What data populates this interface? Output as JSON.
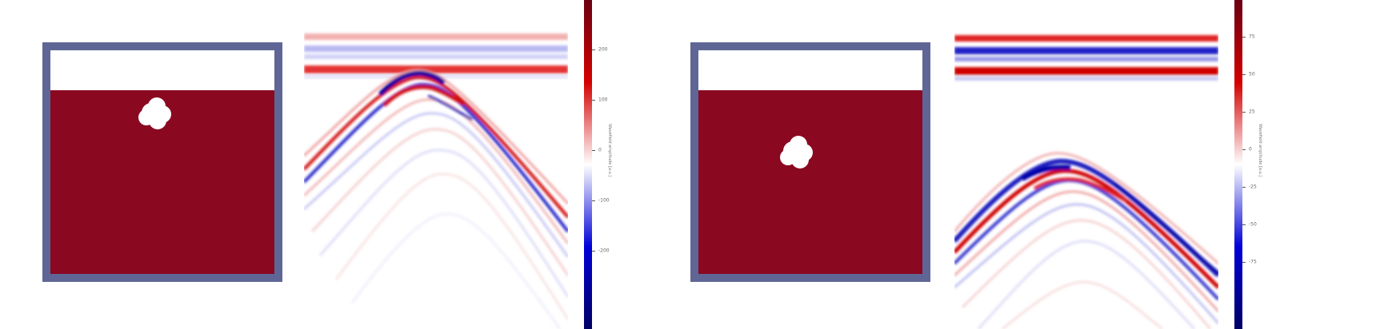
{
  "figure": {
    "panels": [
      {
        "colorbar_ticks": [
          "200",
          "100",
          "0",
          "-100",
          "-200"
        ],
        "colorbar_label": "Wavefield amplitude [a.u.]"
      },
      {
        "colorbar_ticks": [
          "75",
          "50",
          "25",
          "0",
          "-25",
          "-50",
          "-75"
        ],
        "colorbar_label": "Wavefield amplitude [a.u.]"
      }
    ],
    "colors": {
      "frame": "#5f6695",
      "fluid": "#8a0820",
      "cavity": "#ffffff",
      "positive": "#d40000",
      "negative": "#0000d8"
    },
    "colormap": "seismic (blue-white-red)"
  }
}
